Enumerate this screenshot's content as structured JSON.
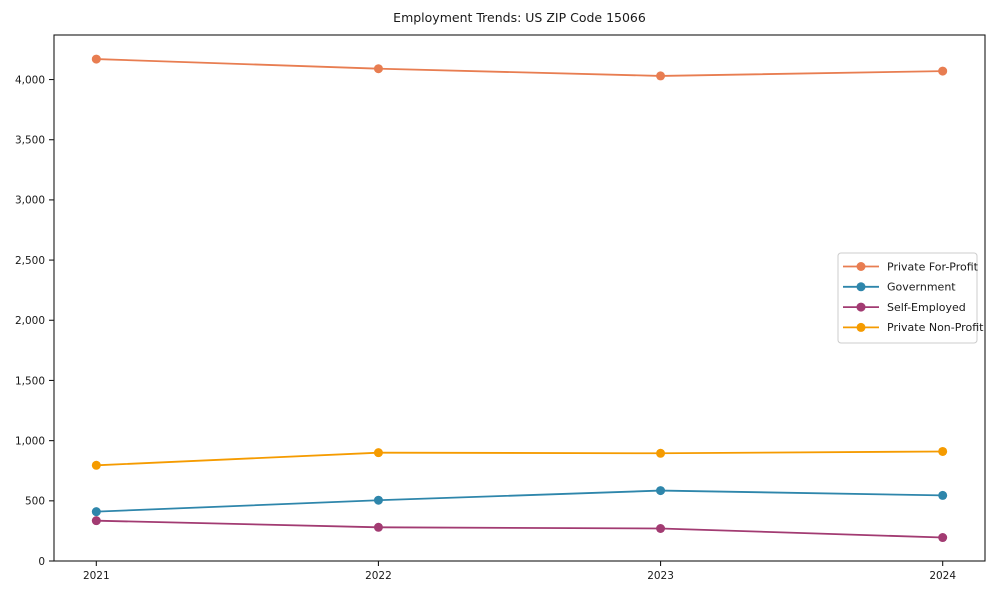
{
  "chart_data": {
    "type": "line",
    "title": "Employment Trends: US ZIP Code 15066",
    "categories": [
      "2021",
      "2022",
      "2023",
      "2024"
    ],
    "x": [
      2021,
      2022,
      2023,
      2024
    ],
    "series": [
      {
        "name": "Private For-Profit",
        "color": "#e87d51",
        "values": [
          4170,
          4090,
          4030,
          4070
        ]
      },
      {
        "name": "Government",
        "color": "#2e86ab",
        "values": [
          410,
          505,
          585,
          545
        ]
      },
      {
        "name": "Self-Employed",
        "color": "#a23b72",
        "values": [
          335,
          280,
          270,
          195
        ]
      },
      {
        "name": "Private Non-Profit",
        "color": "#f59b00",
        "values": [
          795,
          900,
          895,
          910
        ]
      }
    ],
    "xlabel": "",
    "ylabel": "",
    "ylim": [
      0,
      4370
    ],
    "x_margin_years": 0.15,
    "yticks": [
      0,
      500,
      1000,
      1500,
      2000,
      2500,
      3000,
      3500,
      4000
    ],
    "ytick_labels": [
      "0",
      "500",
      "1,000",
      "1,500",
      "2,000",
      "2,500",
      "3,000",
      "3,500",
      "4,000"
    ],
    "grid": false,
    "legend_position": "center-right",
    "marker": "circle",
    "axis_color": "#1a1a1a",
    "text_color": "#1a1a1a",
    "legend_border_color": "#cccccc",
    "background_color": "#ffffff"
  }
}
